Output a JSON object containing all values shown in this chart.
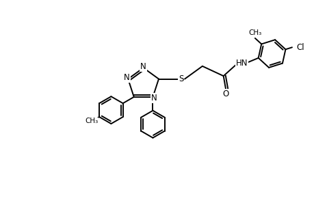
{
  "bg_color": "#ffffff",
  "line_color": "#000000",
  "line_width": 1.4,
  "font_size": 8.5,
  "figsize": [
    4.6,
    3.0
  ],
  "dpi": 100,
  "xlim": [
    0,
    10
  ],
  "ylim": [
    0,
    6.5
  ]
}
